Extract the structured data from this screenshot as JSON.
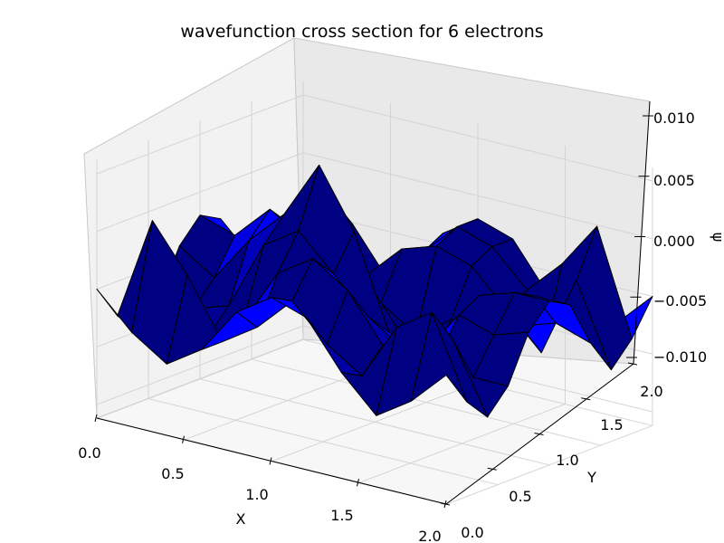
{
  "chart_data": {
    "type": "surface3d",
    "title": "wavefunction cross section for 6 electrons",
    "xlabel": "X",
    "ylabel": "Y",
    "zlabel": "ψ",
    "xlim": [
      0.0,
      2.0
    ],
    "ylim": [
      0.0,
      2.0
    ],
    "zlim": [
      -0.01,
      0.01
    ],
    "x_ticks": [
      "0.0",
      "0.5",
      "1.0",
      "1.5",
      "2.0"
    ],
    "y_ticks": [
      "0.0",
      "0.5",
      "1.0",
      "1.5",
      "2.0"
    ],
    "z_ticks": [
      "−0.010",
      "−0.005",
      "0.000",
      "0.005",
      "0.010"
    ],
    "surface_color": "#0000ff",
    "edge_color": "#000000",
    "grid": true,
    "x": [
      0.0,
      0.2,
      0.4,
      0.6,
      0.8,
      1.0,
      1.2,
      1.4,
      1.6,
      1.8,
      2.0
    ],
    "y": [
      0.0,
      0.2,
      0.4,
      0.6,
      0.8,
      1.0,
      1.2,
      1.4,
      1.6,
      1.8,
      2.0
    ],
    "z": [
      [
        0.0,
        -0.003,
        -0.005,
        -0.003,
        0.001,
        0.003,
        0.002,
        -0.002,
        -0.005,
        -0.003,
        0.0
      ],
      [
        -0.003,
        0.006,
        0.002,
        -0.003,
        -0.001,
        0.002,
        -0.001,
        -0.003,
        0.002,
        0.004,
        -0.003
      ],
      [
        -0.005,
        0.002,
        -0.004,
        -0.002,
        0.003,
        0.005,
        0.003,
        -0.001,
        -0.004,
        0.001,
        -0.005
      ],
      [
        -0.003,
        -0.003,
        -0.002,
        0.004,
        0.006,
        0.003,
        0.0,
        -0.002,
        -0.002,
        -0.003,
        -0.003
      ],
      [
        0.001,
        -0.001,
        0.003,
        0.006,
        0.011,
        0.006,
        -0.002,
        -0.003,
        0.001,
        0.0,
        0.001
      ],
      [
        0.003,
        0.002,
        0.005,
        0.003,
        0.006,
        0.0,
        -0.004,
        -0.005,
        0.002,
        0.003,
        0.003
      ],
      [
        0.002,
        -0.001,
        0.003,
        0.0,
        -0.002,
        -0.004,
        -0.006,
        -0.003,
        0.001,
        0.002,
        0.002
      ],
      [
        -0.002,
        -0.003,
        -0.001,
        -0.002,
        -0.003,
        -0.005,
        -0.003,
        -0.001,
        -0.002,
        -0.001,
        -0.002
      ],
      [
        -0.005,
        0.002,
        -0.004,
        -0.002,
        0.001,
        0.002,
        0.001,
        -0.002,
        -0.005,
        0.002,
        -0.005
      ],
      [
        -0.003,
        0.004,
        0.001,
        -0.003,
        0.0,
        0.003,
        0.002,
        -0.001,
        0.002,
        0.006,
        -0.003
      ],
      [
        0.0,
        -0.003,
        -0.005,
        -0.003,
        0.001,
        0.003,
        0.002,
        -0.002,
        -0.005,
        -0.003,
        0.0
      ]
    ]
  }
}
